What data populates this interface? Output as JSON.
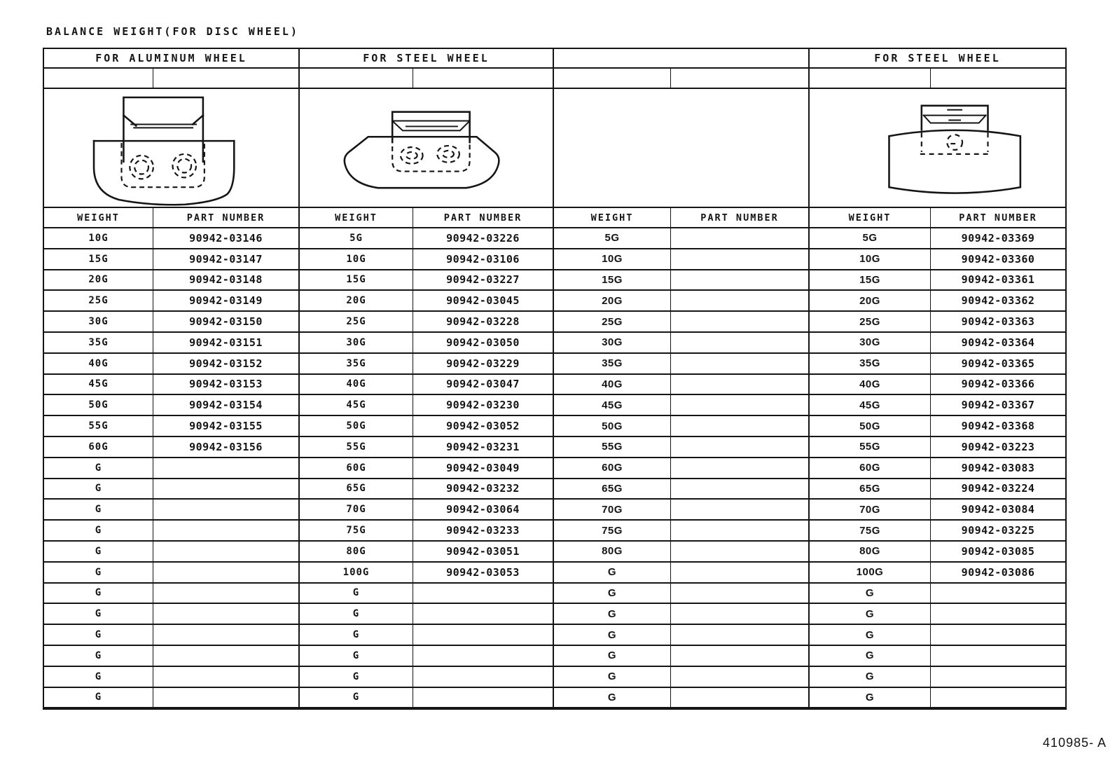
{
  "page": {
    "title": "BALANCE WEIGHT(FOR DISC WHEEL)",
    "footer_code": "410985- A"
  },
  "col_headers": {
    "weight": "WEIGHT",
    "part_number": "PART NUMBER"
  },
  "groups": [
    {
      "header": "FOR ALUMINUM WHEEL",
      "illustration": "aluminum-clip-on-balance-weight",
      "rows": [
        [
          "10G",
          "90942-03146"
        ],
        [
          "15G",
          "90942-03147"
        ],
        [
          "20G",
          "90942-03148"
        ],
        [
          "25G",
          "90942-03149"
        ],
        [
          "30G",
          "90942-03150"
        ],
        [
          "35G",
          "90942-03151"
        ],
        [
          "40G",
          "90942-03152"
        ],
        [
          "45G",
          "90942-03153"
        ],
        [
          "50G",
          "90942-03154"
        ],
        [
          "55G",
          "90942-03155"
        ],
        [
          "60G",
          "90942-03156"
        ],
        [
          "G",
          ""
        ],
        [
          "G",
          ""
        ],
        [
          "G",
          ""
        ],
        [
          "G",
          ""
        ],
        [
          "G",
          ""
        ],
        [
          "G",
          ""
        ],
        [
          "G",
          ""
        ],
        [
          "G",
          ""
        ],
        [
          "G",
          ""
        ],
        [
          "G",
          ""
        ],
        [
          "G",
          ""
        ],
        [
          "G",
          ""
        ]
      ]
    },
    {
      "header": "FOR STEEL WHEEL",
      "illustration": "steel-clip-on-balance-weight",
      "rows": [
        [
          "5G",
          "90942-03226"
        ],
        [
          "10G",
          "90942-03106"
        ],
        [
          "15G",
          "90942-03227"
        ],
        [
          "20G",
          "90942-03045"
        ],
        [
          "25G",
          "90942-03228"
        ],
        [
          "30G",
          "90942-03050"
        ],
        [
          "35G",
          "90942-03229"
        ],
        [
          "40G",
          "90942-03047"
        ],
        [
          "45G",
          "90942-03230"
        ],
        [
          "50G",
          "90942-03052"
        ],
        [
          "55G",
          "90942-03231"
        ],
        [
          "60G",
          "90942-03049"
        ],
        [
          "65G",
          "90942-03232"
        ],
        [
          "70G",
          "90942-03064"
        ],
        [
          "75G",
          "90942-03233"
        ],
        [
          "80G",
          "90942-03051"
        ],
        [
          "100G",
          "90942-03053"
        ],
        [
          "G",
          ""
        ],
        [
          "G",
          ""
        ],
        [
          "G",
          ""
        ],
        [
          "G",
          ""
        ],
        [
          "G",
          ""
        ],
        [
          "G",
          ""
        ]
      ]
    },
    {
      "header": "",
      "illustration": "",
      "rows": [
        [
          "5G",
          ""
        ],
        [
          "10G",
          ""
        ],
        [
          "15G",
          ""
        ],
        [
          "20G",
          ""
        ],
        [
          "25G",
          ""
        ],
        [
          "30G",
          ""
        ],
        [
          "35G",
          ""
        ],
        [
          "40G",
          ""
        ],
        [
          "45G",
          ""
        ],
        [
          "50G",
          ""
        ],
        [
          "55G",
          ""
        ],
        [
          "60G",
          ""
        ],
        [
          "65G",
          ""
        ],
        [
          "70G",
          ""
        ],
        [
          "75G",
          ""
        ],
        [
          "80G",
          ""
        ],
        [
          "G",
          ""
        ],
        [
          "G",
          ""
        ],
        [
          "G",
          ""
        ],
        [
          "G",
          ""
        ],
        [
          "G",
          ""
        ],
        [
          "G",
          ""
        ],
        [
          "G",
          ""
        ]
      ]
    },
    {
      "header": "FOR STEEL WHEEL",
      "illustration": "steel-rim-balance-weight",
      "rows": [
        [
          "5G",
          "90942-03369"
        ],
        [
          "10G",
          "90942-03360"
        ],
        [
          "15G",
          "90942-03361"
        ],
        [
          "20G",
          "90942-03362"
        ],
        [
          "25G",
          "90942-03363"
        ],
        [
          "30G",
          "90942-03364"
        ],
        [
          "35G",
          "90942-03365"
        ],
        [
          "40G",
          "90942-03366"
        ],
        [
          "45G",
          "90942-03367"
        ],
        [
          "50G",
          "90942-03368"
        ],
        [
          "55G",
          "90942-03223"
        ],
        [
          "60G",
          "90942-03083"
        ],
        [
          "65G",
          "90942-03224"
        ],
        [
          "70G",
          "90942-03084"
        ],
        [
          "75G",
          "90942-03225"
        ],
        [
          "80G",
          "90942-03085"
        ],
        [
          "100G",
          "90942-03086"
        ],
        [
          "G",
          ""
        ],
        [
          "G",
          ""
        ],
        [
          "G",
          ""
        ],
        [
          "G",
          ""
        ],
        [
          "G",
          ""
        ],
        [
          "G",
          ""
        ]
      ]
    }
  ]
}
